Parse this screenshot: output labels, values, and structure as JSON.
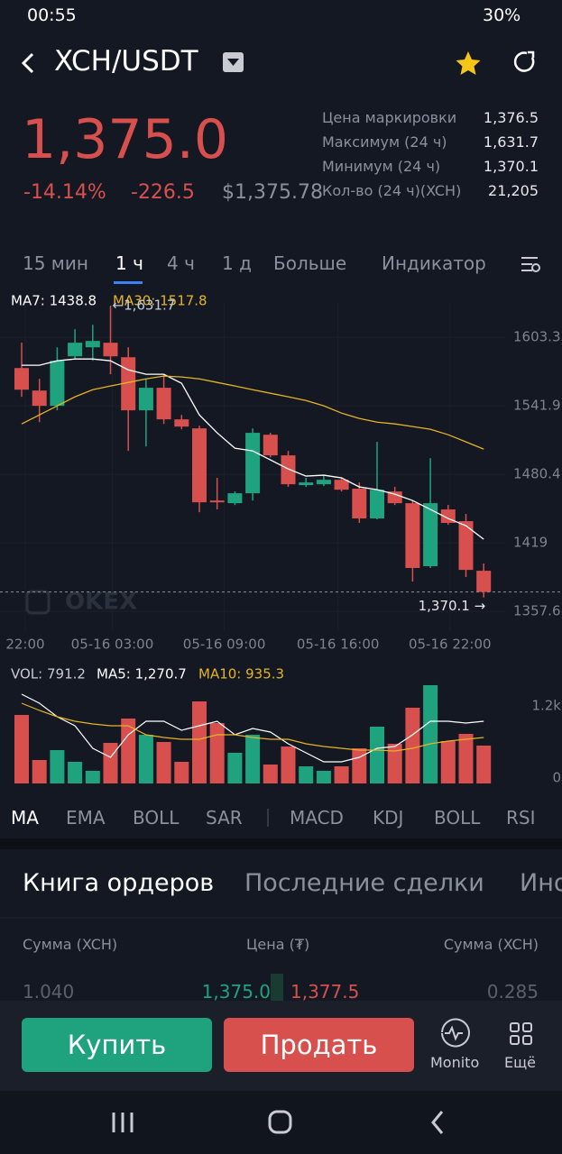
{
  "status_bar": {
    "time": "00:55",
    "battery": "30%"
  },
  "header": {
    "pair": "XCH/USDT"
  },
  "ticker": {
    "price": "1,375.0",
    "change_percent": "-14.14%",
    "change": "-226.5",
    "usd_price": "$1,375.78"
  },
  "stats": [
    {
      "label": "Цена маркировки",
      "value": "1,376.5"
    },
    {
      "label": "Максимум (24 ч)",
      "value": "1,631.7"
    },
    {
      "label": "Минимум (24 ч)",
      "value": "1,370.1"
    },
    {
      "label": "Кол-во (24 ч)(XCH)",
      "value": "21,205"
    }
  ],
  "timeframes": {
    "tabs": [
      "15 мин",
      "1 ч",
      "4 ч",
      "1 д",
      "Больше",
      "Индикатор"
    ],
    "selected": 1
  },
  "chart_data": [
    {
      "type": "candlestick",
      "up_color": "#1fa37f",
      "down_color": "#d8504d",
      "open": [
        1575.8,
        1555.6,
        1541.9,
        1586.3,
        1594.4,
        1598.5,
        1585.5,
        1537.9,
        1558.1,
        1529.8,
        1521.7,
        1457.0,
        1454.6,
        1463.5,
        1516.0,
        1497.5,
        1470.8,
        1471.6,
        1475.6,
        1467.6,
        1440.9,
        1465.1,
        1454.6,
        1398.1,
        1449.0,
        1438.5,
        1394.0
      ],
      "high": [
        1598.5,
        1566.1,
        1594.4,
        1610.6,
        1614.6,
        1631.7,
        1594.4,
        1566.1,
        1570.2,
        1533.8,
        1524.1,
        1477.3,
        1465.1,
        1521.7,
        1517.7,
        1501.5,
        1477.3,
        1478.9,
        1477.3,
        1473.2,
        1509.6,
        1469.2,
        1457.0,
        1495.0,
        1453.0,
        1445.0,
        1400.5
      ],
      "low": [
        1550.0,
        1527.3,
        1537.9,
        1583.9,
        1582.3,
        1570.2,
        1501.5,
        1505.5,
        1525.7,
        1520.9,
        1446.5,
        1449.0,
        1453.0,
        1457.0,
        1495.8,
        1469.2,
        1469.2,
        1470.0,
        1465.1,
        1436.9,
        1440.1,
        1453.0,
        1384.3,
        1396.5,
        1435.2,
        1388.4,
        1370.1
      ],
      "close": [
        1556.4,
        1541.9,
        1582.3,
        1598.5,
        1600.1,
        1586.3,
        1537.9,
        1558.1,
        1529.8,
        1523.3,
        1455.4,
        1455.4,
        1463.5,
        1517.7,
        1497.5,
        1471.6,
        1473.2,
        1475.6,
        1466.7,
        1440.9,
        1466.7,
        1454.6,
        1396.5,
        1454.6,
        1436.9,
        1394.8,
        1375.0
      ],
      "series": [
        {
          "name": "MA7: 1438.8",
          "color": "#ffffff",
          "values": [
            1578.3,
            1578.3,
            1582.3,
            1583.9,
            1583.9,
            1582.3,
            1574.2,
            1570.2,
            1570.2,
            1562.1,
            1533.8,
            1517.7,
            1503.9,
            1501.5,
            1493.4,
            1485.3,
            1478.9,
            1479.7,
            1477.3,
            1469.2,
            1466.7,
            1462.7,
            1457.0,
            1449.0,
            1440.9,
            1434.4,
            1422.3
          ]
        },
        {
          "name": "MA30: 1517.8",
          "color": "#e6b422",
          "values": [
            1525.7,
            1533.8,
            1541.9,
            1550.0,
            1556.4,
            1559.7,
            1562.9,
            1566.1,
            1568.6,
            1567.8,
            1566.1,
            1562.9,
            1559.7,
            1556.4,
            1553.2,
            1550.0,
            1546.7,
            1541.9,
            1535.4,
            1530.6,
            1527.3,
            1525.7,
            1523.3,
            1520.9,
            1516.0,
            1509.6,
            1503.1
          ]
        }
      ],
      "ylim": [
        1339.9,
        1635
      ],
      "yticks": [
        1603.3,
        1541.9,
        1480.4,
        1419,
        1357.6
      ],
      "xticks": [
        {
          "value": 0.2,
          "label": "22:00"
        },
        {
          "value": 5.1,
          "label": "05-16 03:00"
        },
        {
          "value": 11.4,
          "label": "05-16 09:00"
        },
        {
          "value": 17.8,
          "label": "05-16 16:00"
        },
        {
          "value": 24.1,
          "label": "05-16 22:00"
        }
      ],
      "high_label": "←1,631.7",
      "low_label": "1,370.1 →",
      "watermark": "OKEX"
    },
    {
      "type": "volume",
      "bar_label": "VOL: 791.2",
      "values": [
        1140,
        390,
        555,
        360,
        210,
        675,
        1080,
        810,
        690,
        360,
        1365,
        1005,
        510,
        810,
        315,
        615,
        285,
        210,
        285,
        585,
        945,
        660,
        1260,
        1635,
        705,
        825,
        630
      ],
      "series": [
        {
          "name": "MA5: 1,270.7",
          "color": "#ffffff",
          "values": [
            1485,
            1335,
            1110,
            960,
            585,
            435,
            810,
            1035,
            1035,
            885,
            960,
            1035,
            810,
            915,
            855,
            660,
            510,
            360,
            360,
            435,
            585,
            615,
            810,
            1035,
            1035,
            1005,
            1035
          ]
        },
        {
          "name": "MA10: 935.3",
          "color": "#e6b422",
          "values": [
            1335,
            1215,
            1110,
            1035,
            990,
            960,
            960,
            810,
            765,
            735,
            735,
            810,
            810,
            765,
            735,
            735,
            660,
            615,
            585,
            555,
            555,
            540,
            585,
            660,
            705,
            735,
            765
          ]
        }
      ],
      "ylim": [
        0,
        1695
      ],
      "yticks": [
        {
          "value": 1200,
          "label": "1.2k"
        },
        0
      ]
    }
  ],
  "indicators": {
    "main": [
      "MA",
      "EMA",
      "BOLL",
      "SAR"
    ],
    "sub": [
      "MACD",
      "KDJ",
      "BOLL",
      "RSI"
    ]
  },
  "order_book": {
    "tabs": [
      "Книга ордеров",
      "Последние сделки",
      "Ино"
    ],
    "columns": [
      "Сумма (XCH)",
      "Цена (₮)",
      "Сумма (XCH)"
    ],
    "rows": [
      [
        "1.040",
        "1,375.0",
        "1,377.5",
        "0.285"
      ]
    ]
  },
  "actions": {
    "buy": "Купить",
    "sell": "Продать",
    "monitor": "Monito",
    "more": "Ещё"
  }
}
